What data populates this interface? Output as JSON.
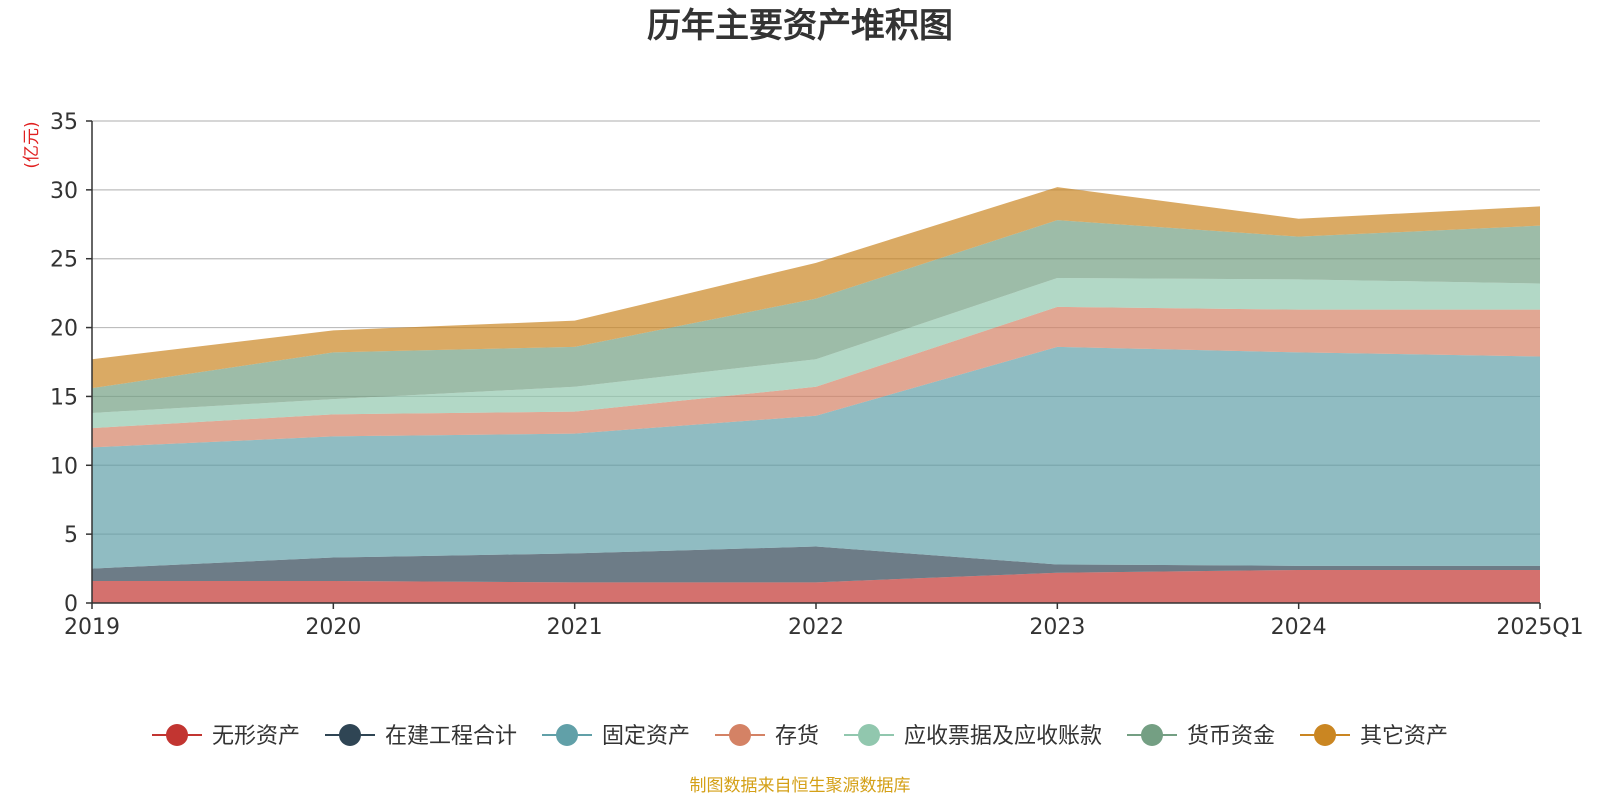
{
  "chart_data": {
    "type": "area",
    "stacked": true,
    "title": "历年主要资产堆积图",
    "ylabel": "(亿元)",
    "xlabel": "",
    "categories": [
      "2019",
      "2020",
      "2021",
      "2022",
      "2023",
      "2024",
      "2025Q1"
    ],
    "ylim": [
      0,
      35
    ],
    "yticks": [
      0,
      5,
      10,
      15,
      20,
      25,
      30,
      35
    ],
    "grid": true,
    "legend_position": "bottom",
    "series": [
      {
        "name": "无形资产",
        "color": "#c23531",
        "values": [
          1.6,
          1.6,
          1.5,
          1.5,
          2.2,
          2.4,
          2.4
        ]
      },
      {
        "name": "在建工程合计",
        "color": "#2f4554",
        "values": [
          0.9,
          1.7,
          2.1,
          2.6,
          0.6,
          0.3,
          0.3
        ]
      },
      {
        "name": "固定资产",
        "color": "#61a0a8",
        "values": [
          8.8,
          8.8,
          8.7,
          9.5,
          15.8,
          15.5,
          15.2
        ]
      },
      {
        "name": "存货",
        "color": "#d48265",
        "values": [
          1.4,
          1.6,
          1.6,
          2.1,
          2.9,
          3.1,
          3.4
        ]
      },
      {
        "name": "应收票据及应收账款",
        "color": "#91c7ae",
        "values": [
          1.1,
          1.1,
          1.8,
          2.0,
          2.1,
          2.2,
          1.9
        ]
      },
      {
        "name": "货币资金",
        "color": "#749f83",
        "values": [
          1.8,
          3.4,
          2.9,
          4.4,
          4.2,
          3.1,
          4.2
        ]
      },
      {
        "name": "其它资产",
        "color": "#ca8622",
        "values": [
          2.1,
          1.6,
          1.9,
          2.6,
          2.4,
          1.3,
          1.4
        ]
      }
    ]
  },
  "footer": {
    "source_note": "制图数据来自恒生聚源数据库"
  }
}
